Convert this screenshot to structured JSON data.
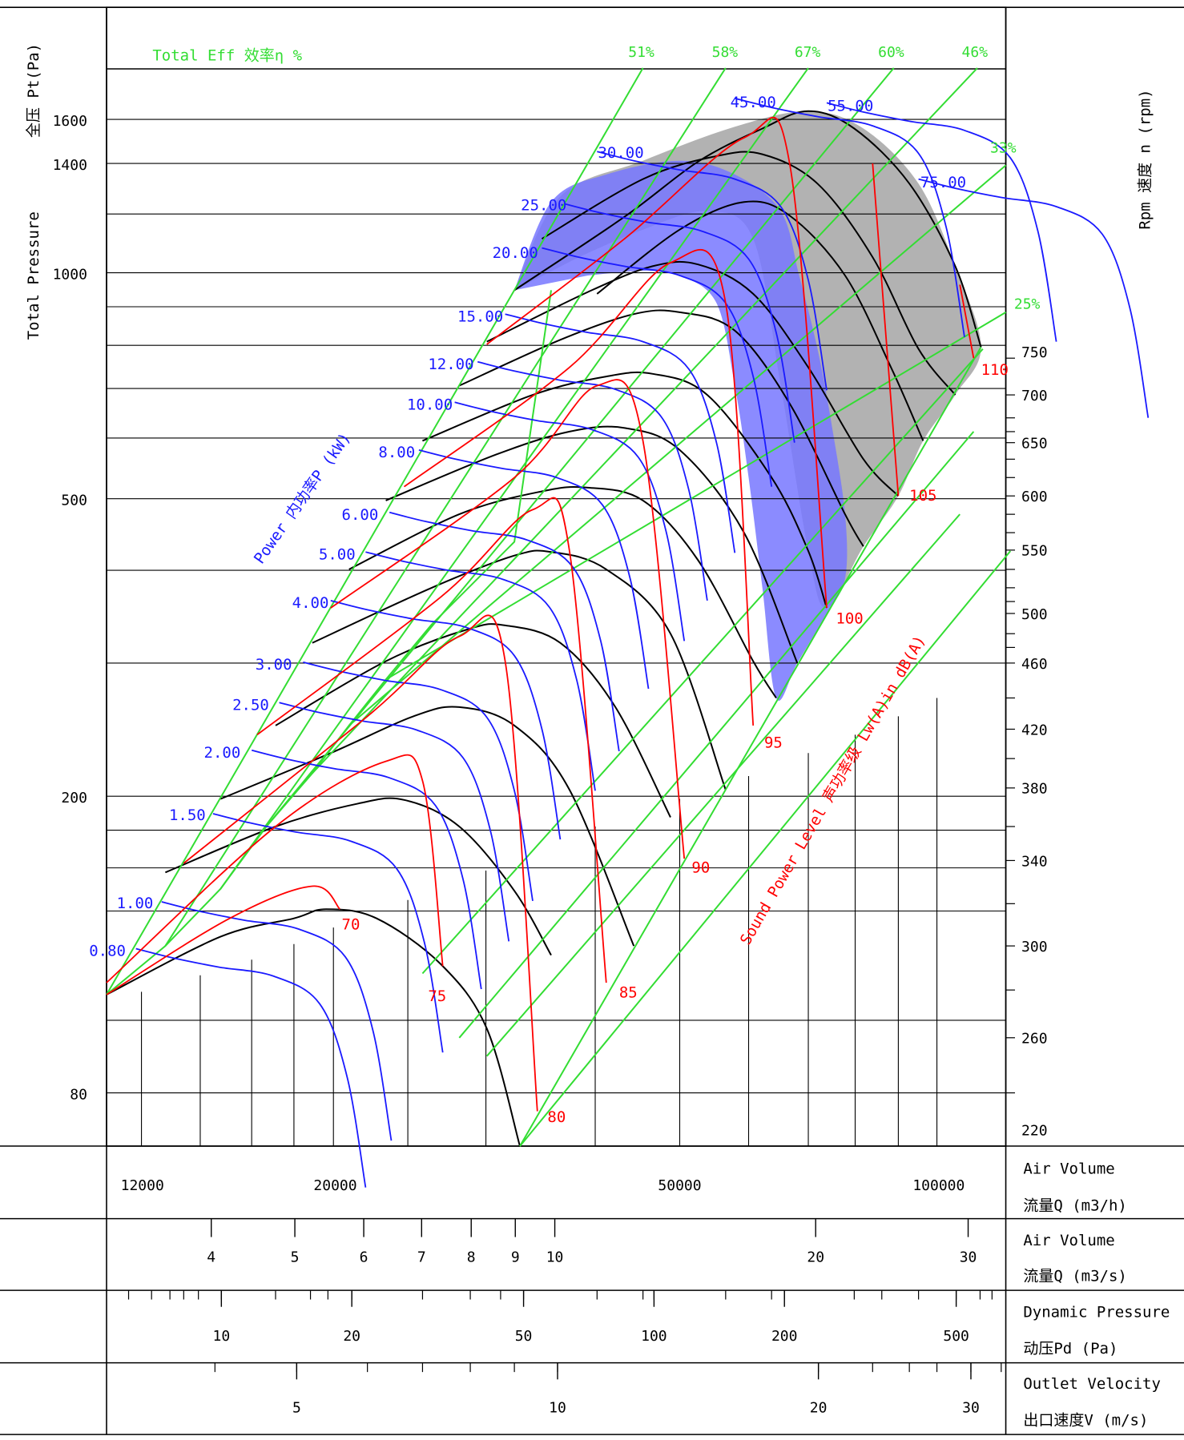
{
  "chart_data": {
    "type": "line",
    "title": "",
    "left_axis": {
      "label_cn": "全压 Pt(Pa)",
      "label_en": "Total Pressure",
      "ticks": [
        "1600",
        "1400",
        "1000",
        "500",
        "200",
        "80"
      ],
      "scale": "log"
    },
    "right_axis": {
      "label": "Rpm  速度 n (rpm)",
      "ticks": [
        "750",
        "700",
        "650",
        "600",
        "550",
        "500",
        "460",
        "420",
        "380",
        "340",
        "300",
        "260",
        "220"
      ]
    },
    "x_axes": [
      {
        "label1": "Air Volume",
        "label2": "流量Q (m3/h)",
        "ticks": [
          "12000",
          "20000",
          "50000",
          "100000"
        ],
        "scale": "log"
      },
      {
        "label1": "Air Volume",
        "label2": "流量Q (m3/s)",
        "ticks": [
          "4",
          "5",
          "6",
          "7",
          "8",
          "9",
          "10",
          "20",
          "30"
        ],
        "scale": "log"
      },
      {
        "label1": "Dynamic Pressure",
        "label2": "动压Pd  (Pa)",
        "ticks": [
          "10",
          "20",
          "50",
          "100",
          "200",
          "500"
        ],
        "scale": "log"
      },
      {
        "label1": "Outlet Velocity",
        "label2": "出口速度V  (m/s)",
        "ticks": [
          "5",
          "10",
          "20",
          "30"
        ],
        "scale": "log"
      }
    ],
    "efficiency": {
      "label": "Total Eff 效率η %",
      "lines": [
        "51%",
        "58%",
        "67%",
        "60%",
        "46%",
        "33%",
        "25%"
      ]
    },
    "power": {
      "label": "Power 内功率P (kW)",
      "values": [
        "0.80",
        "1.00",
        "1.50",
        "2.00",
        "2.50",
        "3.00",
        "4.00",
        "5.00",
        "6.00",
        "8.00",
        "10.00",
        "12.00",
        "15.00",
        "20.00",
        "25.00",
        "30.00",
        "45.00",
        "55.00",
        "75.00"
      ]
    },
    "sound": {
      "label": "Sound Power Level 声功率级 Lw(A)in dB(A)",
      "values": [
        "70",
        "75",
        "80",
        "85",
        "90",
        "95",
        "100",
        "105",
        "110"
      ]
    },
    "grid": true,
    "colors": {
      "pressure_curve": "#000000",
      "power": "#1a1aff",
      "sound": "#ff0000",
      "efficiency": "#33dd33",
      "optimal_region": "#7777ff",
      "overload_region": "#aaaaaa"
    }
  }
}
